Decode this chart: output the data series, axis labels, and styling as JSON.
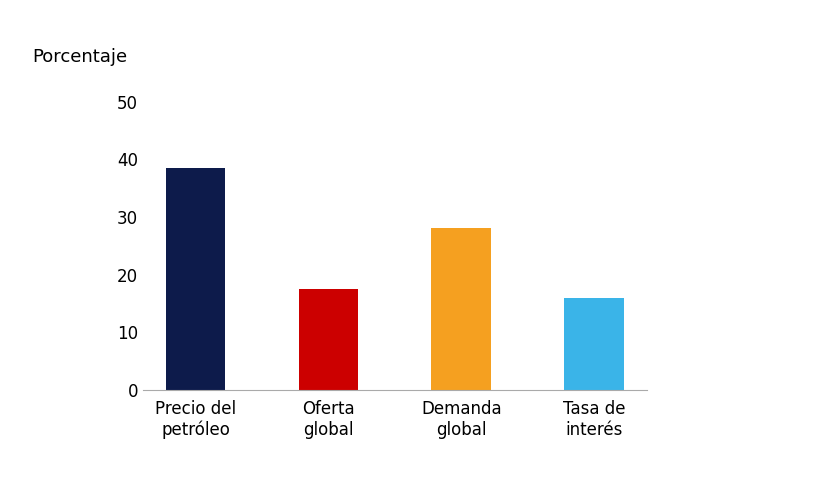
{
  "categories": [
    "Precio del\npetróleo",
    "Oferta\nglobal",
    "Demanda\nglobal",
    "Tasa de\ninterés"
  ],
  "values": [
    38.5,
    17.5,
    28.0,
    16.0
  ],
  "bar_colors": [
    "#0d1b4b",
    "#cc0000",
    "#f5a020",
    "#3ab4e8"
  ],
  "ylabel": "Porcentaje",
  "ylim": [
    0,
    52
  ],
  "yticks": [
    0,
    10,
    20,
    30,
    40,
    50
  ],
  "background_color": "#ffffff",
  "ylabel_fontsize": 13,
  "tick_fontsize": 12,
  "xlabel_fontsize": 12,
  "bar_width": 0.45
}
